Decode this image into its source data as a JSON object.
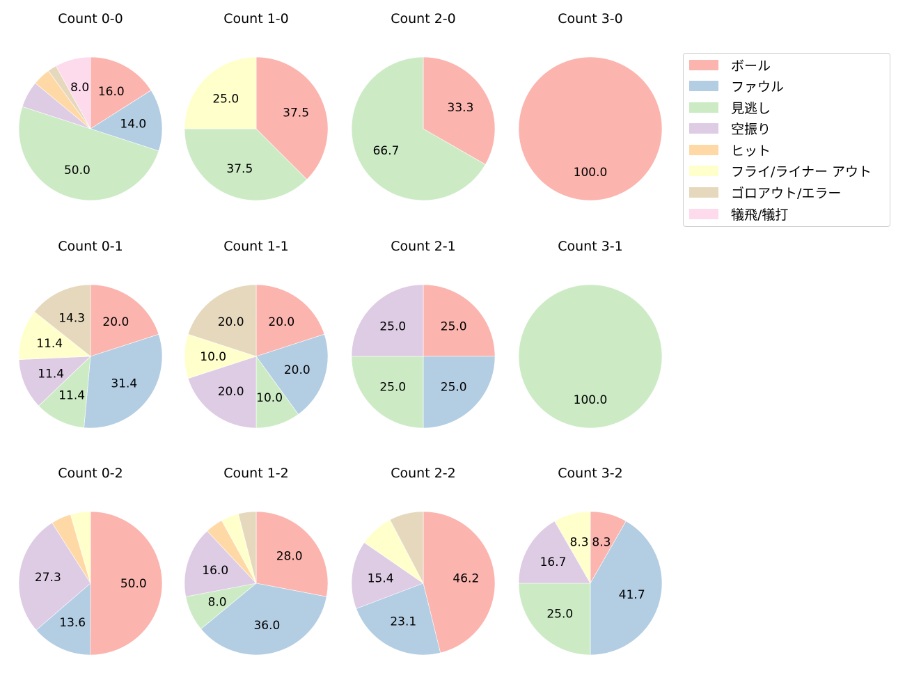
{
  "legend": {
    "items": [
      {
        "label": "ボール",
        "color": "#fbb4ae"
      },
      {
        "label": "ファウル",
        "color": "#b3cde3"
      },
      {
        "label": "見逃し",
        "color": "#ccebc5"
      },
      {
        "label": "空振り",
        "color": "#decbe4"
      },
      {
        "label": "ヒット",
        "color": "#fed9a6"
      },
      {
        "label": "フライ/ライナー アウト",
        "color": "#ffffcc"
      },
      {
        "label": "ゴロアウト/エラー",
        "color": "#e5d8bd"
      },
      {
        "label": "犠飛/犠打",
        "color": "#fddaec"
      }
    ]
  },
  "chart_data": [
    {
      "type": "pie",
      "title": "Count 0-0",
      "categories": [
        "ボール",
        "ファウル",
        "見逃し",
        "空振り",
        "ヒット",
        "フライ/ライナー アウト",
        "ゴロアウト/エラー",
        "犠飛/犠打"
      ],
      "values": [
        16.0,
        14.0,
        50.0,
        6.0,
        4.0,
        0,
        2.0,
        8.0
      ],
      "labels_shown": [
        "16.0",
        "14.0",
        "50.0"
      ]
    },
    {
      "type": "pie",
      "title": "Count 1-0",
      "categories": [
        "ボール",
        "ファウル",
        "見逃し",
        "空振り",
        "ヒット",
        "フライ/ライナー アウト",
        "ゴロアウト/エラー",
        "犠飛/犠打"
      ],
      "values": [
        37.5,
        0,
        37.5,
        0,
        0,
        25.0,
        0,
        0
      ],
      "labels_shown": [
        "37.5",
        "37.5",
        "25.0"
      ]
    },
    {
      "type": "pie",
      "title": "Count 2-0",
      "categories": [
        "ボール",
        "ファウル",
        "見逃し",
        "空振り",
        "ヒット",
        "フライ/ライナー アウト",
        "ゴロアウト/エラー",
        "犠飛/犠打"
      ],
      "values": [
        33.3,
        0,
        66.7,
        0,
        0,
        0,
        0,
        0
      ],
      "labels_shown": [
        "33.3",
        "66.7"
      ]
    },
    {
      "type": "pie",
      "title": "Count 3-0",
      "categories": [
        "ボール",
        "ファウル",
        "見逃し",
        "空振り",
        "ヒット",
        "フライ/ライナー アウト",
        "ゴロアウト/エラー",
        "犠飛/犠打"
      ],
      "values": [
        100.0,
        0,
        0,
        0,
        0,
        0,
        0,
        0
      ],
      "labels_shown": [
        "100.0"
      ]
    },
    {
      "type": "pie",
      "title": "Count 0-1",
      "categories": [
        "ボール",
        "ファウル",
        "見逃し",
        "空振り",
        "ヒット",
        "フライ/ライナー アウト",
        "ゴロアウト/エラー",
        "犠飛/犠打"
      ],
      "values": [
        20.0,
        31.4,
        11.4,
        11.4,
        0,
        11.4,
        14.3,
        0
      ],
      "labels_shown": [
        "20.0",
        "31.4",
        "11.4",
        "11.4",
        "11.4",
        "14.3"
      ]
    },
    {
      "type": "pie",
      "title": "Count 1-1",
      "categories": [
        "ボール",
        "ファウル",
        "見逃し",
        "空振り",
        "ヒット",
        "フライ/ライナー アウト",
        "ゴロアウト/エラー",
        "犠飛/犠打"
      ],
      "values": [
        20.0,
        20.0,
        10.0,
        20.0,
        0,
        10.0,
        20.0,
        0
      ],
      "labels_shown": [
        "20.0",
        "20.0",
        "10.0",
        "20.0",
        "10.0",
        "20.0"
      ]
    },
    {
      "type": "pie",
      "title": "Count 2-1",
      "categories": [
        "ボール",
        "ファウル",
        "見逃し",
        "空振り",
        "ヒット",
        "フライ/ライナー アウト",
        "ゴロアウト/エラー",
        "犠飛/犠打"
      ],
      "values": [
        25.0,
        25.0,
        25.0,
        25.0,
        0,
        0,
        0,
        0
      ],
      "labels_shown": [
        "25.0",
        "25.0",
        "25.0",
        "25.0"
      ]
    },
    {
      "type": "pie",
      "title": "Count 3-1",
      "categories": [
        "ボール",
        "ファウル",
        "見逃し",
        "空振り",
        "ヒット",
        "フライ/ライナー アウト",
        "ゴロアウト/エラー",
        "犠飛/犠打"
      ],
      "values": [
        0,
        0,
        100.0,
        0,
        0,
        0,
        0,
        0
      ],
      "labels_shown": [
        "100.0"
      ]
    },
    {
      "type": "pie",
      "title": "Count 0-2",
      "categories": [
        "ボール",
        "ファウル",
        "見逃し",
        "空振り",
        "ヒット",
        "フライ/ライナー アウト",
        "ゴロアウト/エラー",
        "犠飛/犠打"
      ],
      "values": [
        50.0,
        13.6,
        0,
        27.3,
        4.5,
        4.5,
        0,
        0
      ],
      "labels_shown": [
        "50.0",
        "13.6",
        "27.3"
      ]
    },
    {
      "type": "pie",
      "title": "Count 1-2",
      "categories": [
        "ボール",
        "ファウル",
        "見逃し",
        "空振り",
        "ヒット",
        "フライ/ライナー アウト",
        "ゴロアウト/エラー",
        "犠飛/犠打"
      ],
      "values": [
        28.0,
        36.0,
        8.0,
        16.0,
        4.0,
        4.0,
        4.0,
        0
      ],
      "labels_shown": [
        "28.0",
        "36.0",
        "16.0"
      ]
    },
    {
      "type": "pie",
      "title": "Count 2-2",
      "categories": [
        "ボール",
        "ファウル",
        "見逃し",
        "空振り",
        "ヒット",
        "フライ/ライナー アウト",
        "ゴロアウト/エラー",
        "犠飛/犠打"
      ],
      "values": [
        46.2,
        23.1,
        0,
        15.4,
        0,
        7.7,
        7.7,
        0
      ],
      "labels_shown": [
        "46.2",
        "23.1",
        "15.4"
      ]
    },
    {
      "type": "pie",
      "title": "Count 3-2",
      "categories": [
        "ボール",
        "ファウル",
        "見逃し",
        "空振り",
        "ヒット",
        "フライ/ライナー アウト",
        "ゴロアウト/エラー",
        "犠飛/犠打"
      ],
      "values": [
        8.3,
        41.7,
        25.0,
        16.7,
        0,
        8.3,
        0,
        0
      ],
      "labels_shown": [
        "8.3",
        "41.7",
        "25.0",
        "16.7",
        "8.3"
      ]
    }
  ]
}
